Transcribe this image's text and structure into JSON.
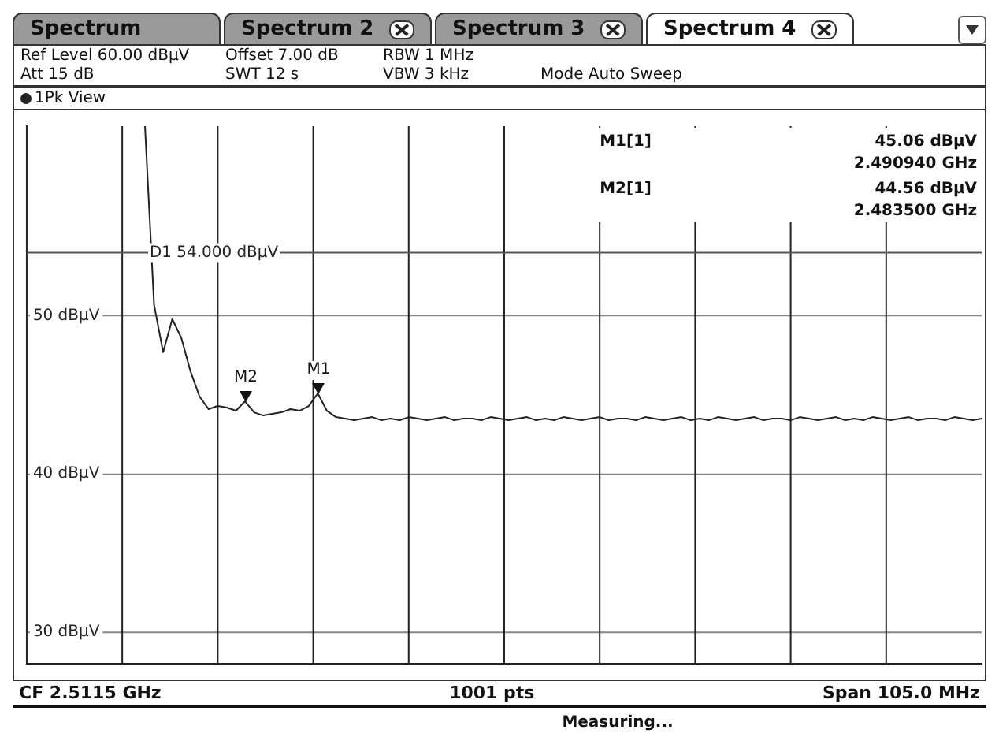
{
  "chart_data": {
    "type": "line",
    "categories": [
      null,
      null,
      null,
      null,
      null,
      null,
      null,
      null,
      null,
      null,
      null,
      null,
      null,
      null,
      null,
      null,
      null,
      null,
      null,
      null,
      null,
      null,
      null,
      null,
      null,
      null,
      null,
      null,
      null,
      null,
      null,
      null,
      null,
      null,
      null,
      null,
      null,
      null,
      null,
      null,
      null,
      null,
      null,
      null,
      null,
      null,
      null,
      null,
      null,
      null,
      null,
      null,
      null,
      null,
      null,
      null,
      null,
      null,
      null,
      null,
      null,
      null,
      null,
      null,
      null,
      null,
      null,
      null,
      null,
      null,
      null,
      null,
      null,
      null,
      null,
      null,
      null,
      null,
      null,
      null,
      null,
      null,
      null,
      null,
      null,
      null,
      null,
      null,
      null,
      null,
      null,
      null,
      null,
      null,
      null,
      null,
      null,
      null,
      null,
      null,
      null,
      null,
      null,
      null,
      null,
      null
    ],
    "series": [
      {
        "color": "#222222",
        "values": [
          null,
          null,
          null,
          null,
          null,
          null,
          null,
          null,
          null,
          null,
          null,
          null,
          null,
          62,
          50.7,
          47.7,
          49.8,
          48.6,
          46.5,
          44.9,
          44.1,
          44.3,
          44.2,
          44,
          44.6,
          43.9,
          43.7,
          43.8,
          43.9,
          44.1,
          44,
          44.3,
          45.1,
          44,
          43.6,
          43.5,
          43.4,
          43.5,
          43.6,
          43.4,
          43.5,
          43.4,
          43.6,
          43.5,
          43.4,
          43.5,
          43.6,
          43.4,
          43.5,
          43.5,
          43.4,
          43.6,
          43.5,
          43.4,
          43.5,
          43.6,
          43.4,
          43.5,
          43.4,
          43.6,
          43.5,
          43.4,
          43.5,
          43.6,
          43.4,
          43.5,
          43.5,
          43.4,
          43.6,
          43.5,
          43.4,
          43.5,
          43.6,
          43.4,
          43.5,
          43.4,
          43.6,
          43.5,
          43.4,
          43.5,
          43.6,
          43.4,
          43.5,
          43.5,
          43.4,
          43.6,
          43.5,
          43.4,
          43.5,
          43.6,
          43.4,
          43.5,
          43.4,
          43.6,
          43.5,
          43.4,
          43.5,
          43.6,
          43.4,
          43.5,
          43.5,
          43.4,
          43.6,
          43.5,
          43.4,
          43.5
        ]
      }
    ],
    "ylim": [
      28,
      62
    ],
    "yticks": [
      {
        "value": 30,
        "label": "30 dBµV"
      },
      {
        "value": 40,
        "label": "40 dBµV"
      },
      {
        "value": 50,
        "label": "50 dBµV"
      }
    ],
    "tick_labels": "y",
    "grid": true,
    "ref_lines": [
      {
        "axis": "y",
        "value": 54,
        "label": "D1 54.000 dBµV",
        "color": "#555555"
      }
    ],
    "annotations": [
      "Spectrum",
      "Spectrum 2",
      "Spectrum 3",
      "Spectrum 4",
      "Ref Level 60.00 dBµV",
      "Offset 7.00 dB",
      "RBW 1 MHz",
      "Att 15 dB",
      "SWT 12 s",
      "VBW 3 kHz",
      "Mode Auto Sweep",
      "1Pk View",
      "M1[1]",
      "45.06 dBµV",
      "2.490940 GHz",
      "M2[1]",
      "44.56 dBµV",
      "2.483500 GHz",
      "CF 2.5115 GHz",
      "1001 pts",
      "Span 105.0 MHz",
      "Measuring...",
      {
        "text": "M2",
        "y": 44.56
      },
      {
        "text": "M1",
        "y": 45.06
      }
    ]
  }
}
